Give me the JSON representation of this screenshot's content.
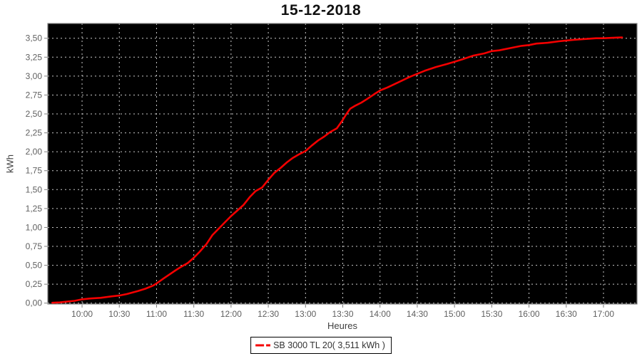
{
  "title": "15-12-2018",
  "axes": {
    "x_title": "Heures",
    "y_title": "kWh"
  },
  "legend": {
    "label": "SB 3000 TL 20( 3,511 kWh )"
  },
  "colors": {
    "plot_background": "#000000",
    "gridline": "#c9c9c9",
    "axis_line": "#808080",
    "tick_label": "#5f5f5f",
    "axis_title": "#404040",
    "series_red": "#f40000",
    "title_text": "#111111",
    "legend_border": "#000000",
    "legend_background": "#ffffff"
  },
  "chart_data": {
    "type": "line",
    "title": "15-12-2018",
    "xlabel": "Heures",
    "ylabel": "kWh",
    "grid": "dashed light-gray on black, vertical every 30 min, horizontal every 0.25 kWh",
    "legend_position": "bottom-center",
    "x_tick_labels": [
      "10:00",
      "10:30",
      "11:00",
      "11:30",
      "12:00",
      "12:30",
      "13:00",
      "13:30",
      "14:00",
      "14:30",
      "15:00",
      "15:30",
      "16:00",
      "16:30",
      "17:00"
    ],
    "x_tick_hours": [
      10,
      10.5,
      11,
      11.5,
      12,
      12.5,
      13,
      13.5,
      14,
      14.5,
      15,
      15.5,
      16,
      16.5,
      17
    ],
    "y_tick_labels": [
      "0,00",
      "0,25",
      "0,50",
      "0,75",
      "1,00",
      "1,25",
      "1,50",
      "1,75",
      "2,00",
      "2,25",
      "2,50",
      "2,75",
      "3,00",
      "3,25",
      "3,50"
    ],
    "y_tick_values": [
      0,
      0.25,
      0.5,
      0.75,
      1,
      1.25,
      1.5,
      1.75,
      2,
      2.25,
      2.5,
      2.75,
      3,
      3.25,
      3.5
    ],
    "xlim_hours": [
      9.54,
      17.45
    ],
    "ylim": [
      -0.012,
      3.695
    ],
    "series": [
      {
        "name": "SB 3000 TL 20( 3,511 kWh )",
        "color": "#f40000",
        "total_kwh_label": "3,511 kWh",
        "points": [
          [
            9.6,
            0.005
          ],
          [
            9.7,
            0.01
          ],
          [
            9.8,
            0.02
          ],
          [
            9.9,
            0.03
          ],
          [
            10.0,
            0.05
          ],
          [
            10.1,
            0.06
          ],
          [
            10.25,
            0.07
          ],
          [
            10.4,
            0.09
          ],
          [
            10.5,
            0.1
          ],
          [
            10.6,
            0.12
          ],
          [
            10.75,
            0.16
          ],
          [
            10.85,
            0.19
          ],
          [
            10.95,
            0.23
          ],
          [
            11.0,
            0.26
          ],
          [
            11.1,
            0.33
          ],
          [
            11.25,
            0.43
          ],
          [
            11.33,
            0.48
          ],
          [
            11.42,
            0.53
          ],
          [
            11.5,
            0.6
          ],
          [
            11.58,
            0.68
          ],
          [
            11.67,
            0.78
          ],
          [
            11.75,
            0.9
          ],
          [
            11.83,
            0.98
          ],
          [
            11.92,
            1.07
          ],
          [
            12.0,
            1.15
          ],
          [
            12.08,
            1.22
          ],
          [
            12.17,
            1.3
          ],
          [
            12.25,
            1.4
          ],
          [
            12.33,
            1.48
          ],
          [
            12.42,
            1.53
          ],
          [
            12.5,
            1.63
          ],
          [
            12.58,
            1.72
          ],
          [
            12.67,
            1.79
          ],
          [
            12.75,
            1.86
          ],
          [
            12.83,
            1.92
          ],
          [
            12.92,
            1.97
          ],
          [
            13.0,
            2.01
          ],
          [
            13.08,
            2.08
          ],
          [
            13.17,
            2.15
          ],
          [
            13.25,
            2.2
          ],
          [
            13.33,
            2.26
          ],
          [
            13.42,
            2.31
          ],
          [
            13.5,
            2.42
          ],
          [
            13.55,
            2.5
          ],
          [
            13.6,
            2.57
          ],
          [
            13.67,
            2.61
          ],
          [
            13.75,
            2.65
          ],
          [
            13.83,
            2.7
          ],
          [
            13.92,
            2.76
          ],
          [
            14.0,
            2.81
          ],
          [
            14.1,
            2.85
          ],
          [
            14.25,
            2.92
          ],
          [
            14.4,
            2.99
          ],
          [
            14.5,
            3.03
          ],
          [
            14.6,
            3.07
          ],
          [
            14.75,
            3.12
          ],
          [
            14.9,
            3.16
          ],
          [
            15.0,
            3.19
          ],
          [
            15.1,
            3.22
          ],
          [
            15.25,
            3.27
          ],
          [
            15.4,
            3.3
          ],
          [
            15.5,
            3.33
          ],
          [
            15.6,
            3.34
          ],
          [
            15.75,
            3.37
          ],
          [
            15.9,
            3.4
          ],
          [
            16.0,
            3.41
          ],
          [
            16.1,
            3.43
          ],
          [
            16.25,
            3.44
          ],
          [
            16.4,
            3.46
          ],
          [
            16.5,
            3.47
          ],
          [
            16.6,
            3.48
          ],
          [
            16.75,
            3.49
          ],
          [
            16.9,
            3.5
          ],
          [
            17.0,
            3.5
          ],
          [
            17.1,
            3.505
          ],
          [
            17.2,
            3.51
          ],
          [
            17.25,
            3.511
          ]
        ]
      }
    ]
  }
}
